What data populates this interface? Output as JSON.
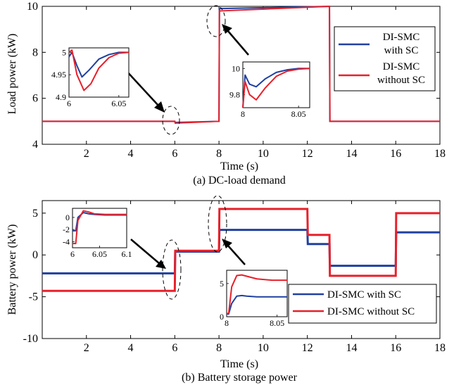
{
  "chart_data": [
    {
      "type": "line",
      "title": "",
      "caption": "(a) DC-load demand",
      "xlabel": "Time (s)",
      "ylabel": "Load power (kW)",
      "xlim": [
        0,
        18
      ],
      "ylim": [
        4,
        10
      ],
      "xticks": [
        "2",
        "4",
        "6",
        "8",
        "10",
        "12",
        "14",
        "16",
        "18"
      ],
      "yticks": [
        "4",
        "6",
        "8",
        "10"
      ],
      "legend": {
        "placement": "right",
        "items": [
          [
            "DI-SMC",
            "with SC"
          ],
          [
            "DI-SMC",
            "without SC"
          ]
        ]
      },
      "series": [
        {
          "color": "#2040a0",
          "x": [
            0,
            6,
            6.02,
            8,
            8.02,
            13,
            13.02,
            16,
            16.02,
            18
          ],
          "y": [
            5,
            5,
            4.95,
            5,
            9.9,
            10,
            5,
            5,
            5,
            5
          ]
        },
        {
          "color": "#e8202a",
          "x": [
            0,
            6,
            6.02,
            8,
            8.02,
            13,
            13.02,
            16,
            16.02,
            18
          ],
          "y": [
            5,
            5,
            4.92,
            5,
            9.8,
            10,
            5,
            5,
            5,
            5
          ]
        }
      ],
      "insets": [
        {
          "xlim": [
            6,
            6.06
          ],
          "ylim": [
            4.9,
            5.01
          ],
          "xticks": [
            "6",
            "6.05"
          ],
          "yticks": [
            "4.9",
            "4.95",
            "5"
          ],
          "series": [
            {
              "color": "#2040a0",
              "x": [
                6,
                6.003,
                6.008,
                6.013,
                6.02,
                6.03,
                6.04,
                6.05,
                6.06
              ],
              "y": [
                4.99,
                5.0,
                4.97,
                4.945,
                4.96,
                4.985,
                4.995,
                5.0,
                5.0
              ]
            },
            {
              "color": "#e8202a",
              "x": [
                6,
                6.003,
                6.008,
                6.015,
                6.022,
                6.03,
                6.04,
                6.05,
                6.06
              ],
              "y": [
                5.0,
                5.005,
                4.95,
                4.915,
                4.93,
                4.965,
                4.988,
                4.998,
                5.0
              ]
            }
          ]
        },
        {
          "xlim": [
            8,
            8.06
          ],
          "ylim": [
            9.7,
            10.05
          ],
          "xticks": [
            "8",
            "8.05"
          ],
          "yticks": [
            "9.8",
            "10"
          ],
          "series": [
            {
              "color": "#2040a0",
              "x": [
                8,
                8.002,
                8.006,
                8.012,
                8.02,
                8.03,
                8.04,
                8.05,
                8.06
              ],
              "y": [
                9.7,
                9.95,
                9.88,
                9.86,
                9.92,
                9.97,
                9.99,
                10.0,
                10.0
              ]
            },
            {
              "color": "#e8202a",
              "x": [
                8,
                8.002,
                8.006,
                8.012,
                8.02,
                8.03,
                8.04,
                8.05,
                8.06
              ],
              "y": [
                9.7,
                9.9,
                9.8,
                9.76,
                9.85,
                9.94,
                9.98,
                9.995,
                10.0
              ]
            }
          ]
        }
      ]
    },
    {
      "type": "line",
      "title": "",
      "caption": "(b) Battery storage power",
      "xlabel": "Time (s)",
      "ylabel": "Battery power (kW)",
      "xlim": [
        0,
        18
      ],
      "ylim": [
        -10,
        6.5
      ],
      "xticks": [
        "2",
        "4",
        "6",
        "8",
        "10",
        "12",
        "14",
        "16",
        "18"
      ],
      "yticks": [
        "-10",
        "-5",
        "0",
        "5"
      ],
      "legend": {
        "placement": "bottom-right",
        "items": [
          [
            "DI-SMC with SC"
          ],
          [
            "DI-SMC without SC"
          ]
        ]
      },
      "series": [
        {
          "color": "#2040a0",
          "x": [
            0,
            6,
            6.02,
            8,
            8.02,
            12,
            12.02,
            13,
            13.02,
            16,
            16.02,
            18
          ],
          "y": [
            -2.2,
            -2.2,
            0.4,
            0.4,
            3.0,
            3.0,
            1.3,
            1.3,
            -1.3,
            -1.3,
            2.7,
            2.7
          ]
        },
        {
          "color": "#e8202a",
          "x": [
            0,
            6,
            6.02,
            8,
            8.02,
            12,
            12.02,
            13,
            13.02,
            16,
            16.02,
            18
          ],
          "y": [
            -4.3,
            -4.3,
            0.5,
            0.5,
            5.5,
            5.5,
            2.4,
            2.4,
            -2.5,
            -2.5,
            5.0,
            5.0
          ]
        }
      ],
      "insets": [
        {
          "xlim": [
            6,
            6.1
          ],
          "ylim": [
            -5,
            1.5
          ],
          "xticks": [
            "6",
            "6.05",
            "6.1"
          ],
          "yticks": [
            "-4",
            "-2",
            "0"
          ],
          "series": [
            {
              "color": "#2040a0",
              "x": [
                6,
                6.006,
                6.01,
                6.02,
                6.03,
                6.04,
                6.06,
                6.08,
                6.1
              ],
              "y": [
                -2.2,
                -2.2,
                0.0,
                0.8,
                0.6,
                0.5,
                0.4,
                0.4,
                0.4
              ]
            },
            {
              "color": "#e8202a",
              "x": [
                6,
                6.006,
                6.01,
                6.02,
                6.03,
                6.04,
                6.06,
                6.08,
                6.1
              ],
              "y": [
                -4.3,
                -4.3,
                -0.5,
                1.1,
                0.9,
                0.6,
                0.5,
                0.5,
                0.5
              ]
            }
          ]
        },
        {
          "xlim": [
            8,
            8.06
          ],
          "ylim": [
            0,
            7
          ],
          "xticks": [
            "8",
            "8.05"
          ],
          "yticks": [
            "0",
            "5"
          ],
          "series": [
            {
              "color": "#2040a0",
              "x": [
                8,
                8.002,
                8.005,
                8.01,
                8.015,
                8.02,
                8.03,
                8.045,
                8.06
              ],
              "y": [
                0.4,
                0.4,
                2.0,
                3.1,
                3.2,
                3.1,
                3.0,
                3.0,
                3.0
              ]
            },
            {
              "color": "#e8202a",
              "x": [
                8,
                8.002,
                8.005,
                8.01,
                8.015,
                8.02,
                8.03,
                8.045,
                8.06
              ],
              "y": [
                0.5,
                0.5,
                4.5,
                6.2,
                6.3,
                6.1,
                5.7,
                5.5,
                5.5
              ]
            }
          ]
        }
      ]
    }
  ]
}
